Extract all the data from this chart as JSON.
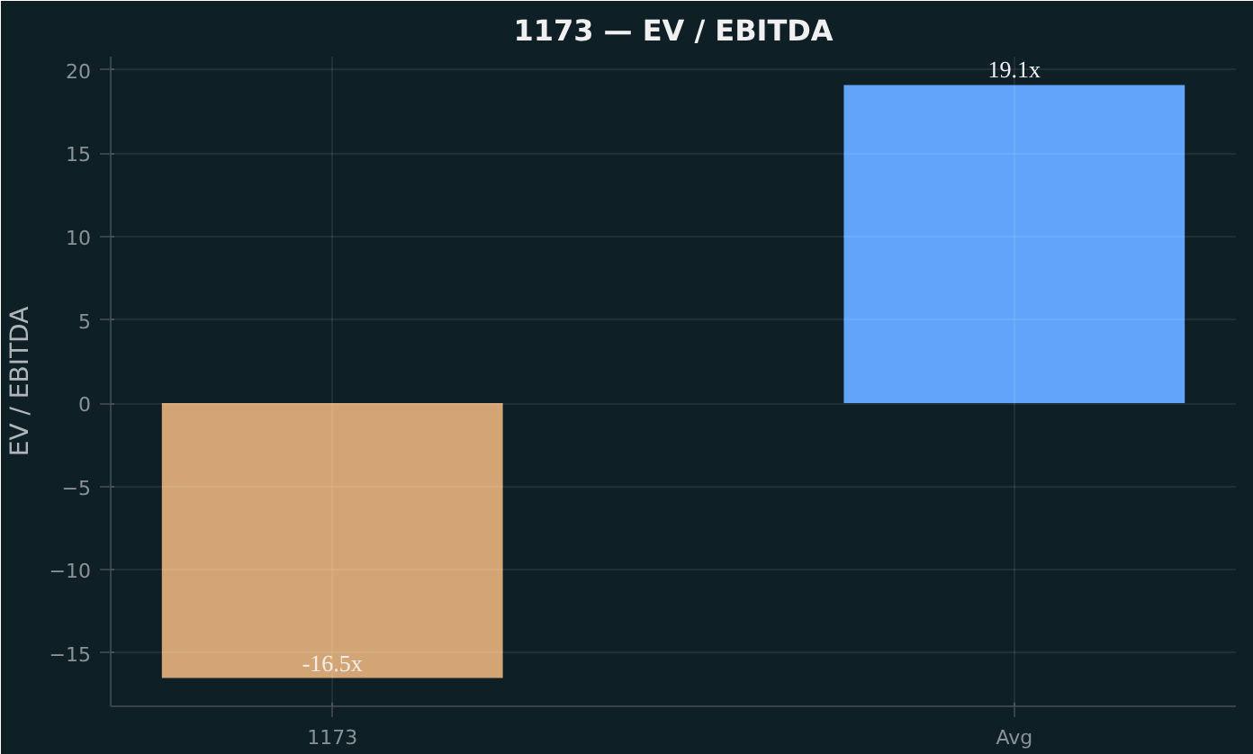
{
  "chart_data": {
    "type": "bar",
    "title": "1173 — EV / EBITDA",
    "ylabel": "EV / EBITDA",
    "categories": [
      "1173",
      "Avg"
    ],
    "values": [
      -16.5,
      19.1
    ],
    "colors": [
      "#d4a574",
      "#60a5fa"
    ],
    "value_labels": [
      "-16.5x",
      "19.1x"
    ],
    "ylim": [
      -18.2,
      20.8
    ],
    "yticks": [
      {
        "value": -15,
        "label": "−15"
      },
      {
        "value": -10,
        "label": "−10"
      },
      {
        "value": -5,
        "label": "−5"
      },
      0,
      5,
      10,
      15,
      20
    ],
    "grid": true
  }
}
